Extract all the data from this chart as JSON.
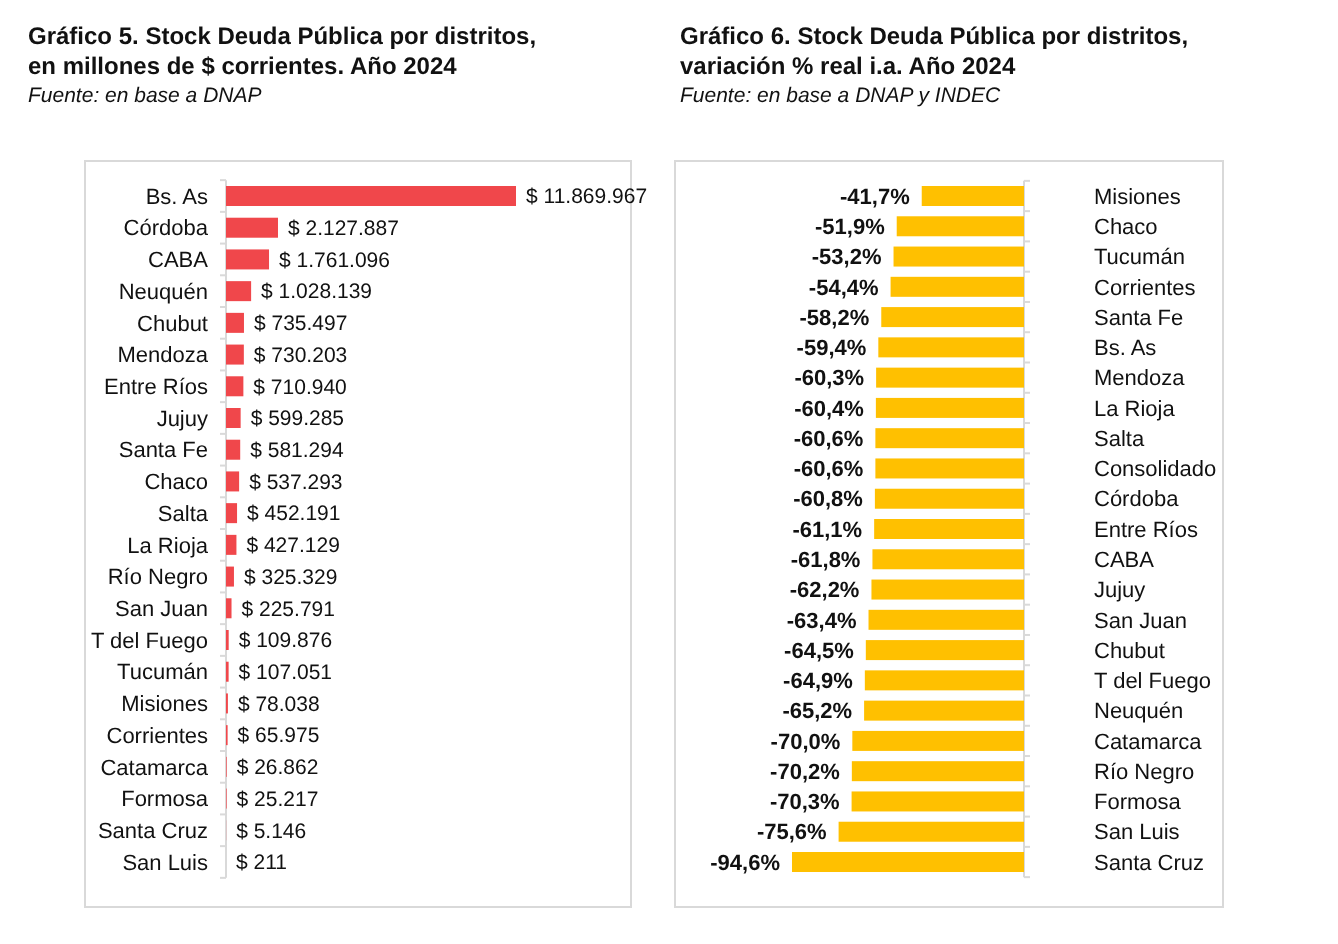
{
  "chart_data": [
    {
      "type": "bar",
      "orientation": "horizontal",
      "title": "Gráfico 5. Stock Deuda Pública por distritos, en millones de $ corrientes. Año 2024",
      "annotations": [
        "Fuente: en base a DNAP"
      ],
      "color": "#f0474b",
      "categories": [
        "Bs. As",
        "Córdoba",
        "CABA",
        "Neuquén",
        "Chubut",
        "Mendoza",
        "Entre Ríos",
        "Jujuy",
        "Santa Fe",
        "Chaco",
        "Salta",
        "La Rioja",
        "Río Negro",
        "San Juan",
        "T del Fuego",
        "Tucumán",
        "Misiones",
        "Corrientes",
        "Catamarca",
        "Formosa",
        "Santa Cruz",
        "San Luis"
      ],
      "values": [
        11869967,
        2127887,
        1761096,
        1028139,
        735497,
        730203,
        710940,
        599285,
        581294,
        537293,
        452191,
        427129,
        325329,
        225791,
        109876,
        107051,
        78038,
        65975,
        26862,
        25217,
        5146,
        211
      ],
      "value_labels": [
        "$ 11.869.967",
        "$ 2.127.887",
        "$ 1.761.096",
        "$ 1.028.139",
        "$ 735.497",
        "$ 730.203",
        "$ 710.940",
        "$ 599.285",
        "$ 581.294",
        "$ 537.293",
        "$ 452.191",
        "$ 427.129",
        "$ 325.329",
        "$ 225.791",
        "$ 109.876",
        "$ 107.051",
        "$ 78.038",
        "$ 65.975",
        "$ 26.862",
        "$ 25.217",
        "$ 5.146",
        "$ 211"
      ]
    },
    {
      "type": "bar",
      "orientation": "horizontal",
      "title": "Gráfico 6. Stock Deuda Pública por distritos, variación % real i.a. Año 2024",
      "annotations": [
        "Fuente: en base a DNAP y INDEC"
      ],
      "color": "#ffc000",
      "categories": [
        "Misiones",
        "Chaco",
        "Tucumán",
        "Corrientes",
        "Santa Fe",
        "Bs. As",
        "Mendoza",
        "La Rioja",
        "Salta",
        "Consolidado",
        "Córdoba",
        "Entre Ríos",
        "CABA",
        "Jujuy",
        "San Juan",
        "Chubut",
        "T del Fuego",
        "Neuquén",
        "Catamarca",
        "Río Negro",
        "Formosa",
        "San Luis",
        "Santa Cruz"
      ],
      "values": [
        -41.7,
        -51.9,
        -53.2,
        -54.4,
        -58.2,
        -59.4,
        -60.3,
        -60.4,
        -60.6,
        -60.6,
        -60.8,
        -61.1,
        -61.8,
        -62.2,
        -63.4,
        -64.5,
        -64.9,
        -65.2,
        -70.0,
        -70.2,
        -70.3,
        -75.6,
        -94.6
      ],
      "value_labels": [
        "-41,7%",
        "-51,9%",
        "-53,2%",
        "-54,4%",
        "-58,2%",
        "-59,4%",
        "-60,3%",
        "-60,4%",
        "-60,6%",
        "-60,6%",
        "-60,8%",
        "-61,1%",
        "-61,8%",
        "-62,2%",
        "-63,4%",
        "-64,5%",
        "-64,9%",
        "-65,2%",
        "-70,0%",
        "-70,2%",
        "-70,3%",
        "-75,6%",
        "-94,6%"
      ]
    }
  ]
}
